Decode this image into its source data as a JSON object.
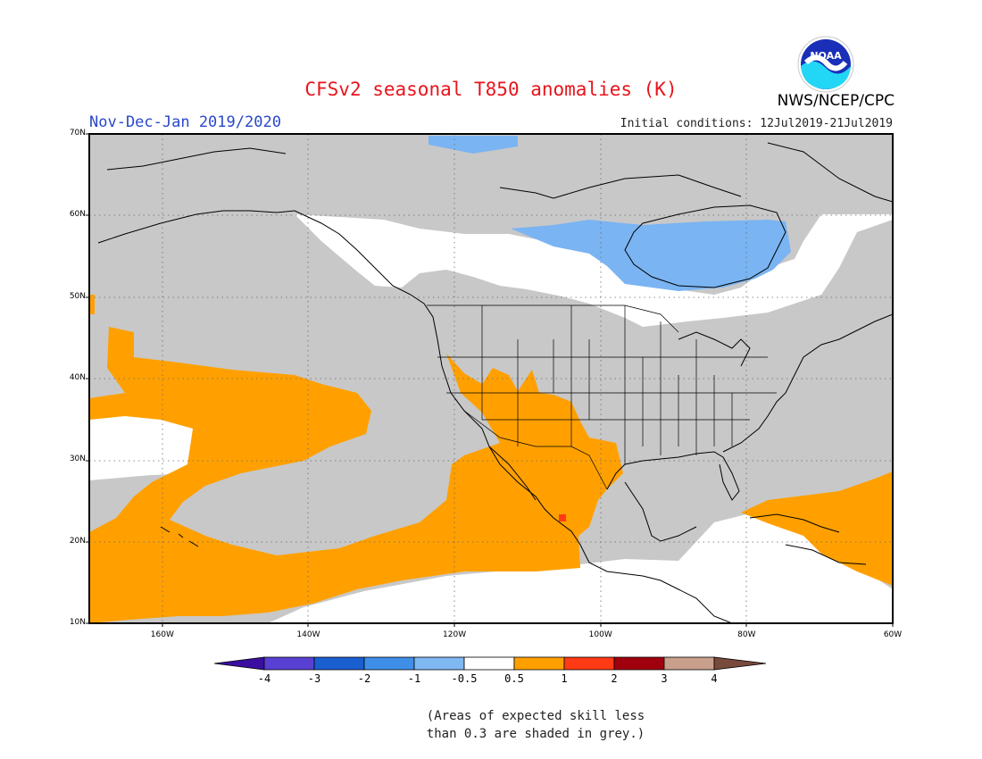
{
  "header": {
    "title": "CFSv2 seasonal T850 anomalies (K)",
    "period": "Nov-Dec-Jan 2019/2020",
    "initial_conditions": "Initial conditions: 12Jul2019-21Jul2019",
    "agency": "NWS/NCEP/CPC",
    "logo_text": "NOAA"
  },
  "map": {
    "projection": "cylindrical",
    "lon_range": [
      -170,
      -60
    ],
    "lat_range": [
      10,
      70
    ],
    "lat_ticks": [
      {
        "value": 70,
        "label": "70N"
      },
      {
        "value": 60,
        "label": "60N"
      },
      {
        "value": 50,
        "label": "50N"
      },
      {
        "value": 40,
        "label": "40N"
      },
      {
        "value": 30,
        "label": "30N"
      },
      {
        "value": 20,
        "label": "20N"
      },
      {
        "value": 10,
        "label": "10N"
      }
    ],
    "lon_ticks": [
      {
        "value": -160,
        "label": "160W"
      },
      {
        "value": -140,
        "label": "140W"
      },
      {
        "value": -120,
        "label": "120W"
      },
      {
        "value": -100,
        "label": "100W"
      },
      {
        "value": -80,
        "label": "80W"
      },
      {
        "value": -60,
        "label": "60W"
      }
    ],
    "colors": {
      "grey_low_skill": "#c8c8c8",
      "neutral": "#ffffff",
      "warm_0_5_to_1": "#ffa000",
      "warm_1_to_2": "#ff3a14",
      "cool_-1_to_-0_5": "#7ab4f2",
      "cool_-0_5_to_0": "#a6cdf6"
    }
  },
  "legend": {
    "labels": [
      "-4",
      "-3",
      "-2",
      "-1",
      "-0.5",
      "0.5",
      "1",
      "2",
      "3",
      "4"
    ],
    "colors": [
      "#3a0ea0",
      "#5840d2",
      "#1a5fd0",
      "#3f8fe8",
      "#80b8f2",
      "#ffffff",
      "#ffa000",
      "#ff3a14",
      "#a0000e",
      "#c8a08c",
      "#784a3c"
    ]
  },
  "note": {
    "line1": "(Areas of expected skill less",
    "line2": "than 0.3 are shaded in grey.)"
  }
}
